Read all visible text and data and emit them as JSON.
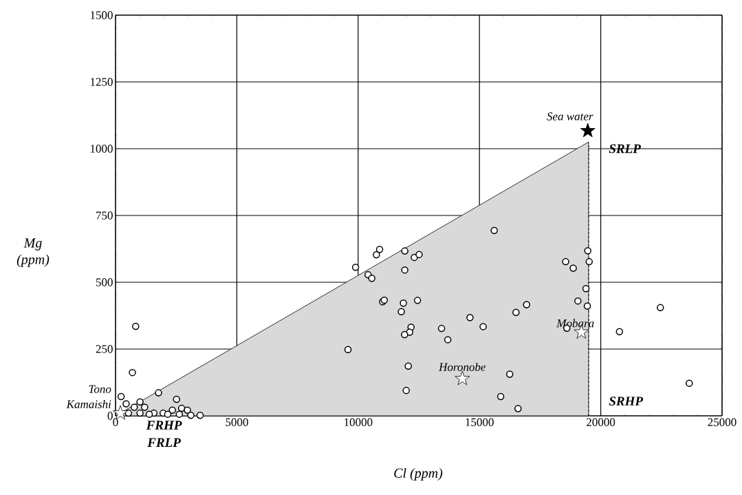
{
  "chart_data": {
    "type": "scatter",
    "xlabel": "Cl (ppm)",
    "ylabel": "Mg (ppm)",
    "xlim": [
      0,
      25000
    ],
    "ylim": [
      0,
      1500
    ],
    "xticks": [
      0,
      5000,
      10000,
      15000,
      20000,
      25000
    ],
    "yticks": [
      0,
      250,
      500,
      750,
      1000,
      1250,
      1500
    ],
    "grid": true,
    "series": [
      {
        "type": "area",
        "color": "#d9d9d9",
        "x": [
          0,
          19500
        ],
        "values": [
          0,
          1025
        ]
      },
      {
        "type": "line",
        "color": "#000000",
        "line_style": "dashed",
        "x": [
          19500,
          19500
        ],
        "values": [
          0,
          1025
        ]
      },
      {
        "marker": "circle",
        "color": "#000000",
        "x": [
          9894,
          10752,
          10886,
          11923,
          12314,
          12514,
          11923,
          10409,
          10563,
          11009,
          11077,
          11866,
          11780,
          12448,
          12181,
          12123,
          11914,
          13438,
          13695,
          14609,
          15152,
          15609,
          16505,
          16943,
          9581,
          12066,
          11981,
          16248,
          15876,
          16590,
          19466,
          18552,
          18866,
          19523,
          19390,
          19057,
          19447,
          22457,
          18600,
          20771,
          23648,
          695,
          830,
          229,
          1771,
          2514,
          1009,
          438,
          771,
          1200,
          533,
          1009,
          1581,
          1962,
          2343,
          2724,
          2962,
          2629,
          3105,
          3486,
          1390,
          2152
        ],
        "values": [
          556,
          603,
          623,
          617,
          593,
          604,
          546,
          528,
          515,
          427,
          433,
          422,
          390,
          432,
          332,
          313,
          304,
          327,
          285,
          368,
          334,
          694,
          387,
          416,
          248,
          186,
          95,
          156,
          72,
          27,
          618,
          577,
          553,
          577,
          476,
          430,
          411,
          405,
          328,
          315,
          122,
          162,
          335,
          72,
          86,
          62,
          52,
          45,
          32,
          32,
          10,
          10,
          10,
          10,
          21,
          28,
          21,
          6,
          2,
          2,
          6,
          6
        ]
      },
      {
        "marker": "star",
        "colors": [
          "#000000",
          "#ffffff",
          "#ffffff",
          "#ffffff"
        ],
        "x": [
          19466,
          19200,
          14295,
          200
        ],
        "values": [
          1067,
          313,
          139,
          10
        ]
      }
    ],
    "annotations": [
      {
        "text": "Sea water",
        "x": 19466,
        "y": 1067
      },
      {
        "text": "Mobara",
        "x": 19200,
        "y": 313
      },
      {
        "text": "Horonobe",
        "x": 14295,
        "y": 139
      },
      {
        "text": "Tono",
        "x": 200,
        "y": 10
      },
      {
        "text": "Kamaishi",
        "x": 200,
        "y": 10
      },
      "**SRLP**",
      "**SRHP**",
      "**FRHP**",
      "**FRLP**"
    ]
  }
}
